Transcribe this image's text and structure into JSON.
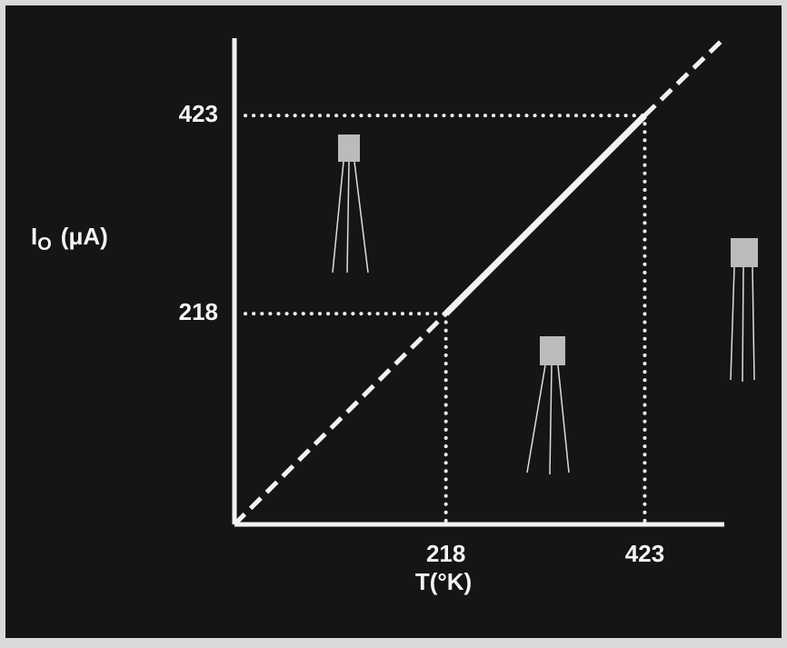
{
  "chart_data": {
    "type": "line",
    "xlabel": "T(°K)",
    "ylabel": {
      "base": "I",
      "sub": "O",
      "unit": "(μA)"
    },
    "x": [
      0,
      218,
      423,
      505
    ],
    "series": [
      {
        "values": [
          0,
          218,
          423,
          503
        ],
        "color": "#f2f2f2",
        "segment_styles": [
          "dashed",
          "solid",
          "dashed"
        ]
      }
    ],
    "xlim": [
      0,
      505
    ],
    "ylim": [
      0,
      503
    ],
    "xticks": [
      218,
      423
    ],
    "yticks": [
      218,
      423
    ],
    "guide_lines": true
  }
}
